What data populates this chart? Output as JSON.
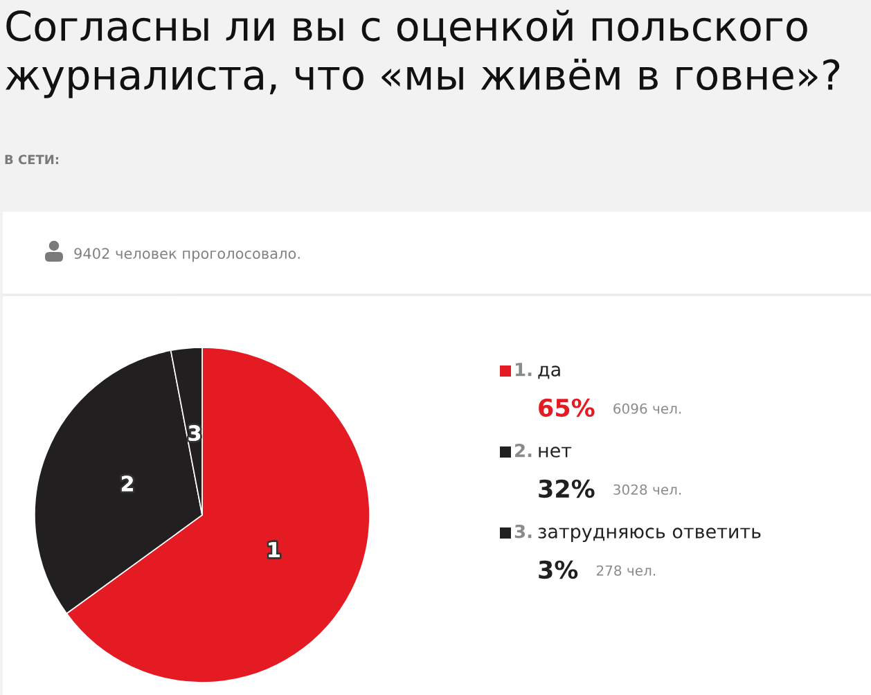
{
  "chart_data": {
    "type": "pie",
    "title": "Согласны ли вы с оценкой польского журналиста, что «мы живём в говне»?",
    "subtitle": "В СЕТИ:",
    "categories": [
      "1. да",
      "2. нет",
      "3. затрудняюсь ответить"
    ],
    "values": [
      65,
      32,
      3
    ],
    "value_labels": [
      "65%",
      "32%",
      "3%"
    ],
    "colors": [
      "#e41b23",
      "#221f20",
      "#221f20"
    ],
    "legend": "right",
    "annotations": [
      "9402 человек проголосовало.",
      "6096 чел.",
      "3028 чел.",
      "278 чел.",
      "1",
      "2",
      "3"
    ]
  }
}
